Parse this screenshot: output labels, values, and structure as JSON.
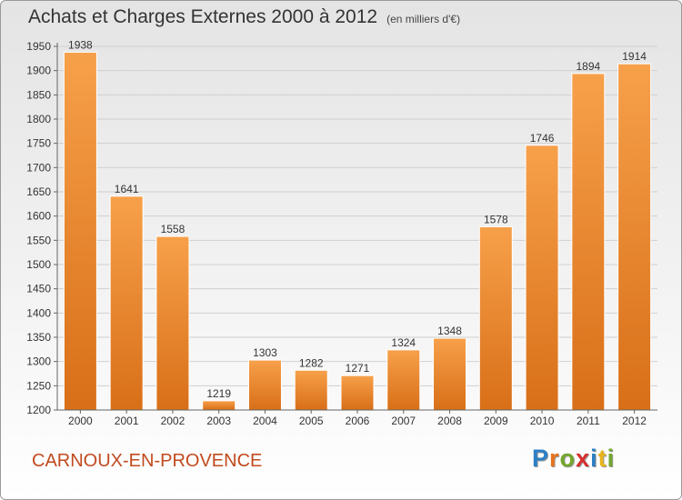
{
  "title": "Achats et Charges Externes 2000 à 2012",
  "unit": "(en milliers d'€)",
  "city": "CARNOUX-EN-PROVENCE",
  "logo": {
    "letters": [
      "P",
      "r",
      "o",
      "x",
      "i",
      "t",
      "i"
    ],
    "colors": [
      "#2c7fc4",
      "#e8731c",
      "#73a72e",
      "#d62f2f",
      "#2c7fc4",
      "#e8b51c",
      "#73a72e"
    ]
  },
  "chart_data": {
    "type": "bar",
    "categories": [
      "2000",
      "2001",
      "2002",
      "2003",
      "2004",
      "2005",
      "2006",
      "2007",
      "2008",
      "2009",
      "2010",
      "2011",
      "2012"
    ],
    "values": [
      1938,
      1641,
      1558,
      1219,
      1303,
      1282,
      1271,
      1324,
      1348,
      1578,
      1746,
      1894,
      1914
    ],
    "ylim": [
      1200,
      1950
    ],
    "yticks": [
      1200,
      1250,
      1300,
      1350,
      1400,
      1450,
      1500,
      1550,
      1600,
      1650,
      1700,
      1750,
      1800,
      1850,
      1900,
      1950
    ],
    "grid": true,
    "bar_color": "#f0922e"
  }
}
